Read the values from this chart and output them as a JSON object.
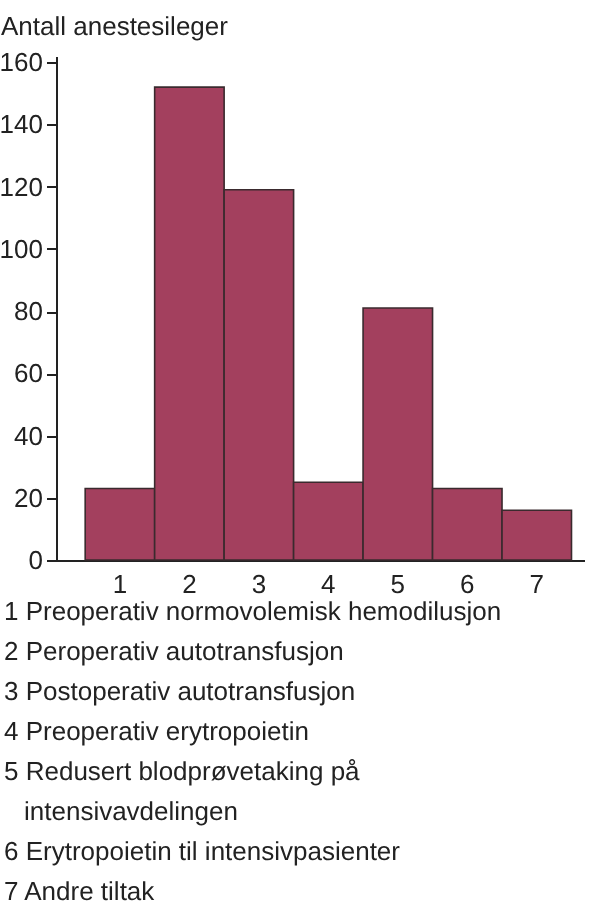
{
  "chart_data": {
    "type": "bar",
    "ylabel": "Antall anestesileger",
    "categories": [
      "1",
      "2",
      "3",
      "4",
      "5",
      "6",
      "7"
    ],
    "values": [
      23,
      152,
      119,
      25,
      81,
      23,
      16
    ],
    "color": "#a3405e",
    "ylim": [
      0,
      162
    ],
    "yticks": [
      0,
      20,
      40,
      60,
      80,
      100,
      120,
      140,
      160
    ],
    "grid": false,
    "annotations": [
      "1 Preoperativ normovolemisk hemodilusjon",
      "2 Peroperativ autotransfusjon",
      "3 Postoperativ autotransfusjon",
      "4 Preoperativ erytropoietin",
      "5 Redusert blodprøvetaking på intensivavdelingen",
      "6 Erytropoietin til intensivpasienter",
      "7 Andre tiltak"
    ]
  }
}
